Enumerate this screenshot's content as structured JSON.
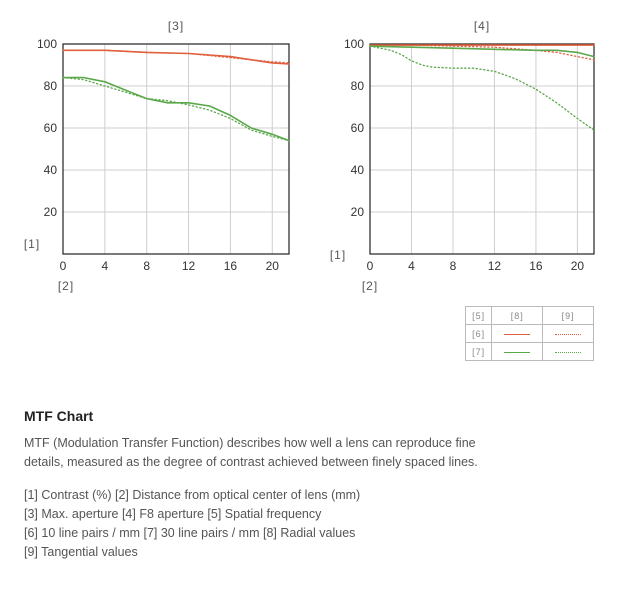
{
  "chart_data": [
    {
      "type": "line",
      "title": "[3]",
      "ylabel": "[1]",
      "xlabel": "[2]",
      "xlim": [
        0,
        21.6
      ],
      "ylim": [
        0,
        100
      ],
      "xticks": [
        0,
        4,
        8,
        12,
        16,
        20
      ],
      "yticks": [
        20,
        40,
        60,
        80,
        100
      ],
      "grid": true,
      "series": [
        {
          "key": "s10",
          "color": "#e0603f",
          "style": "solid",
          "x": [
            0,
            4,
            8,
            12,
            16,
            18,
            20,
            21.6
          ],
          "y": [
            97,
            97,
            96,
            95.5,
            94,
            92.5,
            91,
            90.5
          ]
        },
        {
          "key": "t10",
          "color": "#e0603f",
          "style": "dotted",
          "x": [
            0,
            4,
            8,
            12,
            16,
            18,
            20,
            21.6
          ],
          "y": [
            97,
            97,
            96,
            95.5,
            93.5,
            92.5,
            91.5,
            91
          ]
        },
        {
          "key": "s30",
          "color": "#5aa84a",
          "style": "solid",
          "x": [
            0,
            2,
            4,
            6,
            8,
            10,
            12,
            14,
            16,
            18,
            20,
            21.6
          ],
          "y": [
            84,
            84,
            82,
            78,
            74,
            72,
            72,
            70.5,
            66,
            60,
            57,
            54
          ]
        },
        {
          "key": "t30",
          "color": "#5aa84a",
          "style": "dotted",
          "x": [
            0,
            2,
            4,
            6,
            8,
            10,
            12,
            14,
            16,
            18,
            20,
            21.6
          ],
          "y": [
            84,
            83,
            80,
            77,
            74,
            73,
            71,
            68.5,
            64.5,
            59,
            56,
            54
          ]
        }
      ]
    },
    {
      "type": "line",
      "title": "[4]",
      "ylabel": "[1]",
      "xlabel": "[2]",
      "xlim": [
        0,
        21.6
      ],
      "ylim": [
        0,
        100
      ],
      "xticks": [
        0,
        4,
        8,
        12,
        16,
        20
      ],
      "yticks": [
        20,
        40,
        60,
        80,
        100
      ],
      "grid": true,
      "series": [
        {
          "key": "s10",
          "color": "#e0603f",
          "style": "solid",
          "x": [
            0,
            4,
            8,
            12,
            16,
            20,
            21.6
          ],
          "y": [
            99.5,
            99.5,
            99.5,
            99.5,
            99.5,
            99.5,
            99.5
          ]
        },
        {
          "key": "t10",
          "color": "#e0603f",
          "style": "dotted",
          "x": [
            0,
            4,
            8,
            12,
            16,
            18,
            20,
            21.6
          ],
          "y": [
            99.5,
            99.5,
            99,
            98.5,
            97,
            96,
            94,
            92.5
          ]
        },
        {
          "key": "s30",
          "color": "#5aa84a",
          "style": "solid",
          "x": [
            0,
            4,
            8,
            12,
            16,
            18,
            20,
            21.6
          ],
          "y": [
            99,
            98.5,
            98,
            97.5,
            97,
            97,
            96,
            94
          ]
        },
        {
          "key": "t30",
          "color": "#5aa84a",
          "style": "dotted",
          "x": [
            0,
            2,
            3,
            4,
            5,
            6,
            8,
            10,
            12,
            14,
            16,
            18,
            20,
            21.6
          ],
          "y": [
            99,
            97,
            95,
            92,
            90,
            89,
            88.5,
            88.5,
            87,
            83.5,
            78.5,
            72,
            64.5,
            59
          ]
        }
      ]
    }
  ],
  "legend": {
    "spatial_frequency": "[5]",
    "radial": "[8]",
    "tangential": "[9]",
    "lp10": "[6]",
    "lp30": "[7]"
  },
  "description": {
    "heading": "MTF Chart",
    "body_line1": "MTF (Modulation Transfer Function) describes how well a lens can reproduce fine",
    "body_line2": "details, measured as the degree of contrast achieved between finely spaced lines.",
    "legend_line1": "[1] Contrast (%) [2] Distance from optical center of lens (mm)",
    "legend_line2": "[3] Max. aperture [4] F8 aperture [5] Spatial frequency",
    "legend_line3": "[6] 10 line pairs / mm [7] 30 line pairs / mm [8] Radial values",
    "legend_line4": "[9] Tangential values"
  }
}
